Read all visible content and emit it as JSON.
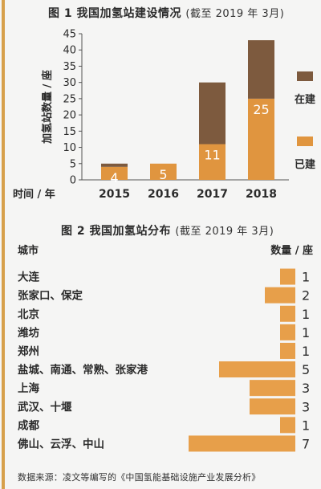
{
  "colors": {
    "built": "#e0953f",
    "under_construction": "#7d5a3e",
    "city_bar": "#e79f4a",
    "accent_rule": "#d7a04b",
    "text": "#2b2b2b"
  },
  "chart1": {
    "title_main": "图 1 我国加氢站建设情况",
    "title_sub": "(截至 2019 年 3月)"
  },
  "chart2": {
    "title_main": "图 2 我国加氢站分布",
    "title_sub": "(截至 2019 年 3月)"
  },
  "source": "数据来源：凌文等编写的《中国氢能基础设施产业发展分析》",
  "chart_data": [
    {
      "type": "bar",
      "stacked": true,
      "title": "图 1 我国加氢站建设情况 (截至 2019 年 3月)",
      "xlabel": "时间 / 年",
      "ylabel": "加氢站数量 / 座",
      "categories": [
        "2015",
        "2016",
        "2017",
        "2018"
      ],
      "series": [
        {
          "name": "已建",
          "values": [
            4,
            5,
            11,
            25
          ],
          "labels": [
            "4",
            "5",
            "11",
            "25"
          ]
        },
        {
          "name": "在建",
          "values": [
            1,
            0,
            19,
            18
          ]
        }
      ],
      "ylim": [
        0,
        45
      ],
      "yticks": [
        0,
        5,
        10,
        15,
        20,
        25,
        30,
        35,
        40,
        45
      ],
      "grid": false,
      "legend": "right"
    },
    {
      "type": "bar",
      "orientation": "horizontal",
      "title": "图 2 我国加氢站分布 (截至 2019 年 3月)",
      "category_header": "城市",
      "value_header": "数量 / 座",
      "categories": [
        "大连",
        "张家口、保定",
        "北京",
        "潍坊",
        "郑州",
        "盐城、南通、常熟、张家港",
        "上海",
        "武汉、十堰",
        "成都",
        "佛山、云浮、中山"
      ],
      "values": [
        1,
        2,
        1,
        1,
        1,
        5,
        3,
        3,
        1,
        7
      ],
      "labels": [
        "1",
        "2",
        "1",
        "1",
        "1",
        "5",
        "3",
        "3",
        "1",
        "7"
      ]
    }
  ]
}
